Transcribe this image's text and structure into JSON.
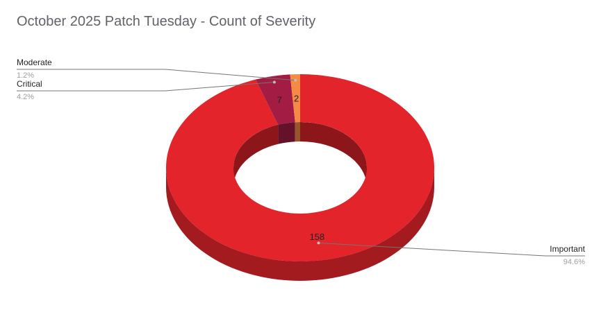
{
  "chart_data": {
    "type": "pie",
    "variant": "3d-donut",
    "title": "October 2025 Patch Tuesday - Count of Severity",
    "categories": [
      "Important",
      "Critical",
      "Moderate"
    ],
    "values": [
      158,
      7,
      2
    ],
    "percent_labels": [
      "94.6%",
      "4.2%",
      "1.2%"
    ],
    "colors": [
      "#e3242b",
      "#a31c44",
      "#f58a44"
    ],
    "legend": "callout-labels"
  }
}
